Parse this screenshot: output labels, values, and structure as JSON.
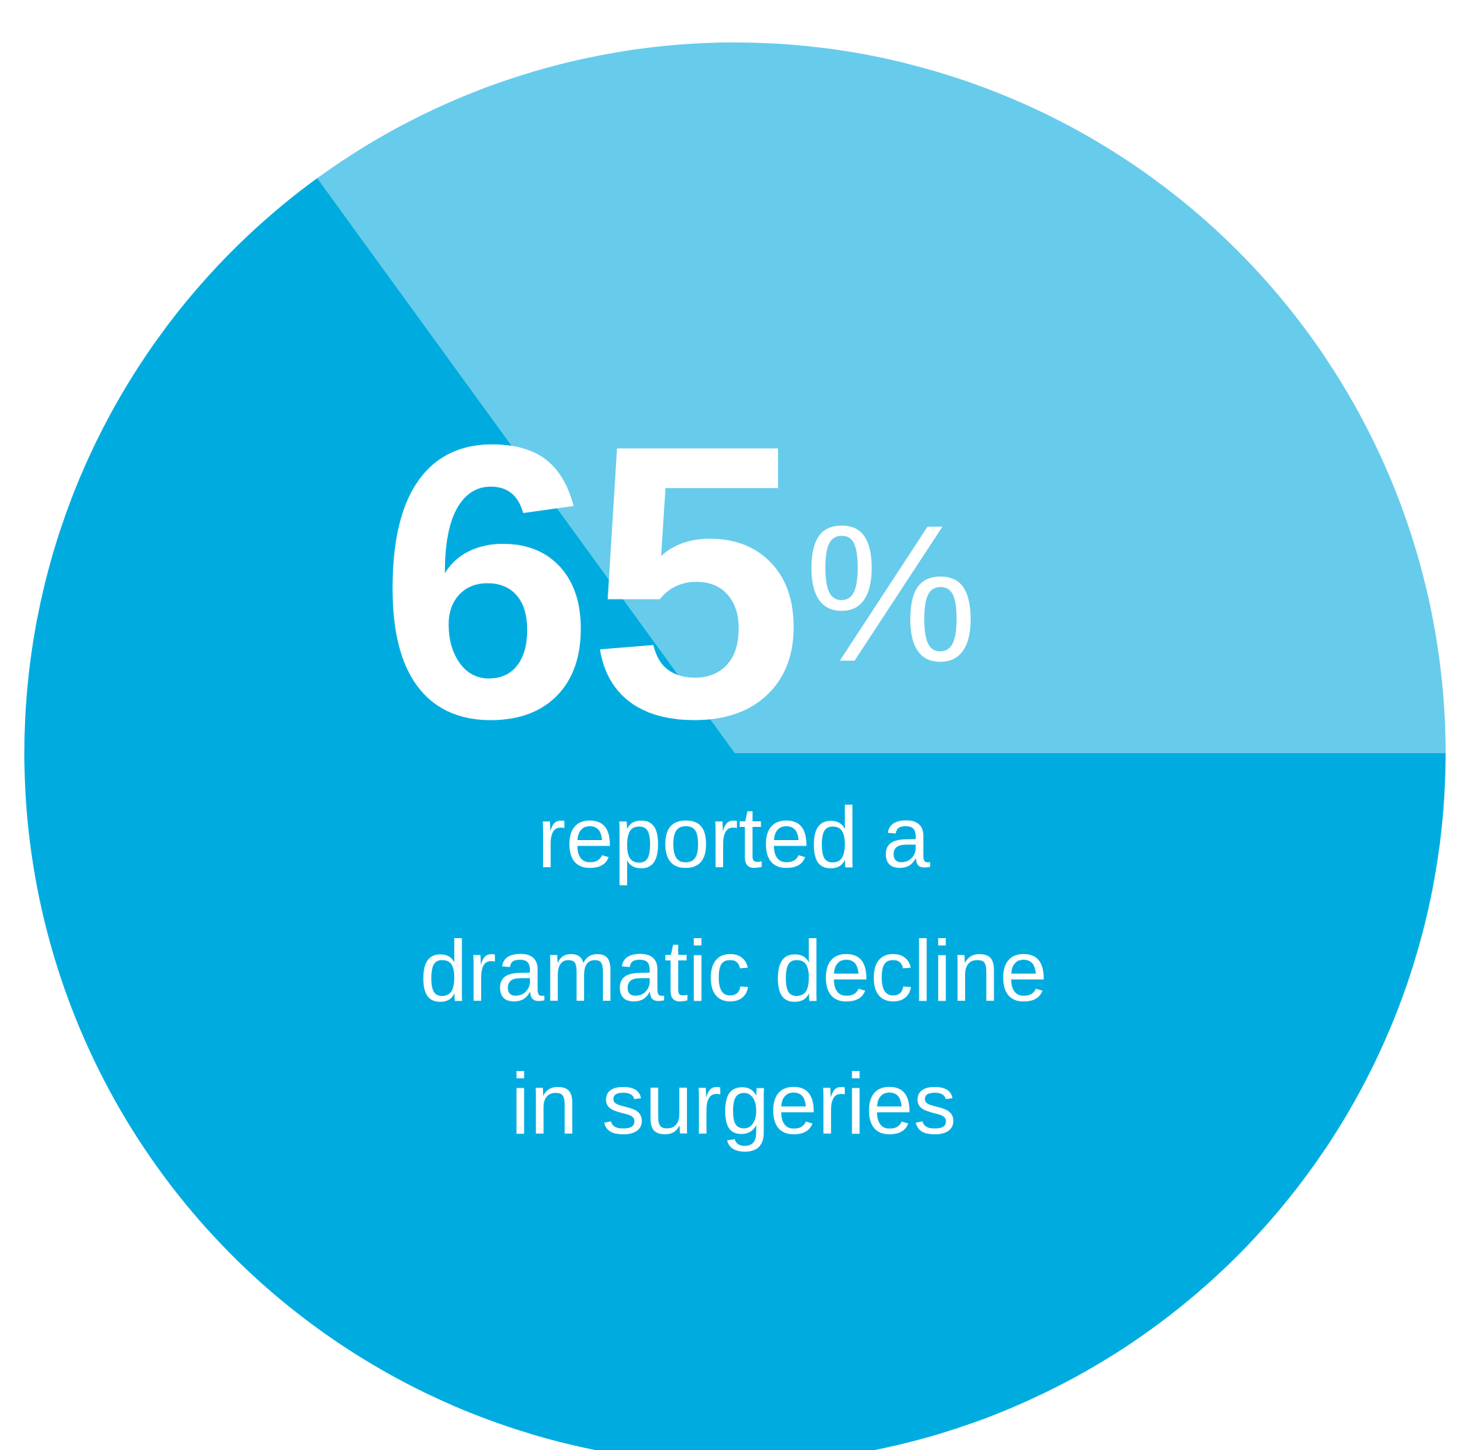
{
  "chart_data": {
    "type": "pie",
    "slices": [
      {
        "label": "reported a dramatic decline in surgeries",
        "value": 65,
        "color": "#00acdf"
      },
      {
        "label": "",
        "value": 35,
        "color": "#67cbeb"
      }
    ],
    "headline": {
      "number": "65",
      "unit": "%"
    },
    "caption_lines": [
      "reported a",
      "dramatic decline",
      "in surgeries"
    ]
  }
}
